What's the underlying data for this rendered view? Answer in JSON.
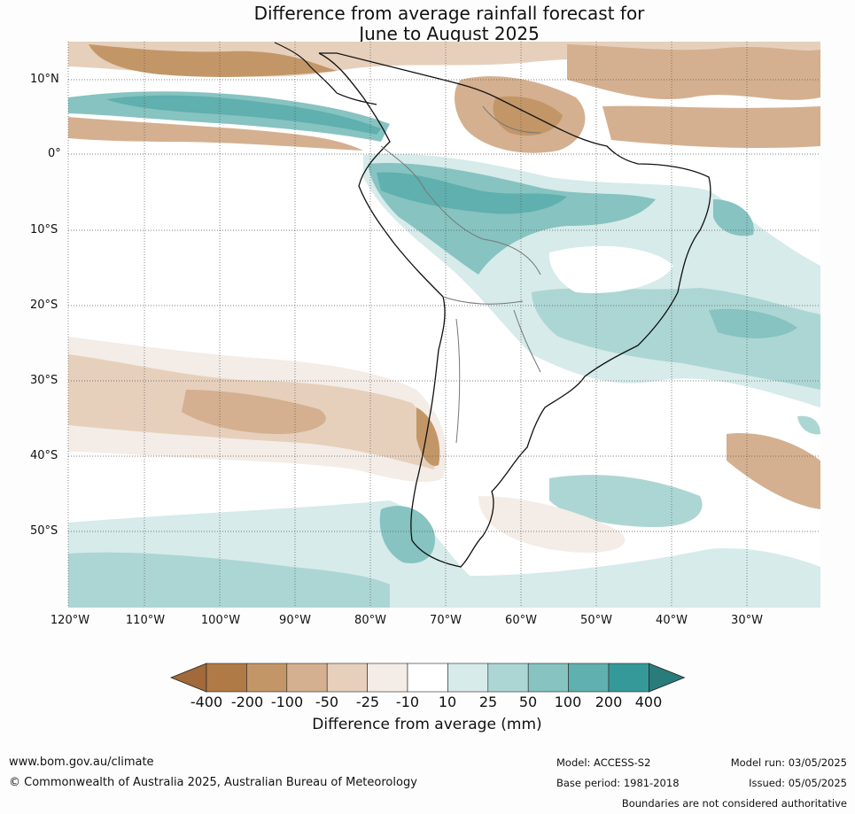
{
  "title_line1": "Difference from average rainfall forecast for",
  "title_line2": "June to August 2025",
  "lat_labels": [
    "10°N",
    "0°",
    "10°S",
    "20°S",
    "30°S",
    "40°S",
    "50°S"
  ],
  "lon_labels": [
    "120°W",
    "110°W",
    "100°W",
    "90°W",
    "80°W",
    "70°W",
    "60°W",
    "50°W",
    "40°W",
    "30°W"
  ],
  "colorbar": {
    "labels": [
      "-400",
      "-200",
      "-100",
      "-50",
      "-25",
      "-10",
      "10",
      "25",
      "50",
      "100",
      "200",
      "400"
    ],
    "colors": [
      "#a2693a",
      "#b07a46",
      "#c39668",
      "#d4b090",
      "#e6d0bc",
      "#f4ece6",
      "#ffffff",
      "#d6ebea",
      "#acd6d4",
      "#86c3c1",
      "#5fb0ae",
      "#35999a",
      "#2a7c7b"
    ],
    "title": "Difference from average (mm)"
  },
  "footer": {
    "url": "www.bom.gov.au/climate",
    "copyright": "© Commonwealth of Australia 2025, Australian Bureau of Meteorology",
    "model": "Model: ACCESS-S2",
    "base_period": "Base period: 1981-2018",
    "model_run": "Model run: 03/05/2025",
    "issued": "Issued: 05/05/2025",
    "boundaries_note": "Boundaries are not considered authoritative"
  }
}
